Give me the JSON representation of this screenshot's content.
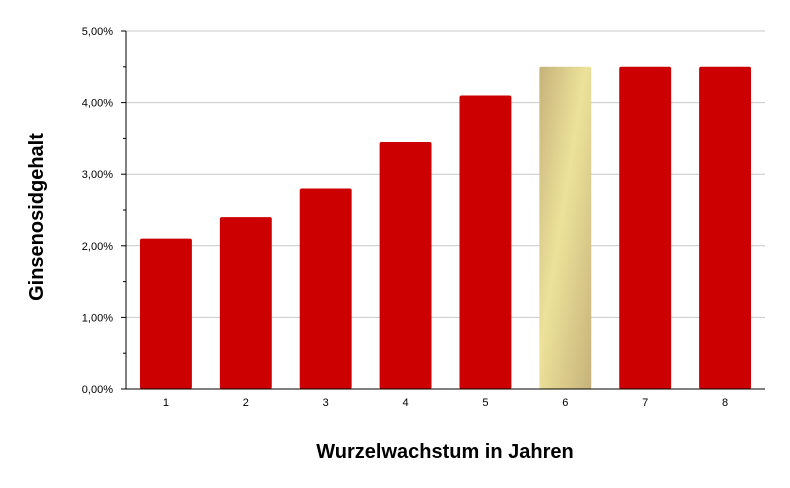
{
  "chart_data": {
    "type": "bar",
    "title": "",
    "xlabel": "Wurzelwachstum in Jahren",
    "ylabel": "Ginsenosidgehalt",
    "categories": [
      "1",
      "2",
      "3",
      "4",
      "5",
      "6",
      "7",
      "8"
    ],
    "values": [
      2.1,
      2.4,
      2.8,
      3.45,
      4.1,
      4.5,
      4.5,
      4.5
    ],
    "ylim": [
      0,
      5
    ],
    "y_ticks": [
      {
        "value": 0,
        "label": "0,00%"
      },
      {
        "value": 1,
        "label": "1,00%"
      },
      {
        "value": 2,
        "label": "2,00%"
      },
      {
        "value": 3,
        "label": "3,00%"
      },
      {
        "value": 4,
        "label": "4,00%"
      },
      {
        "value": 5,
        "label": "5,00%"
      }
    ],
    "grid": true,
    "legend": "none",
    "colors": {
      "bar": "#cc0000",
      "highlight_light": "#ece29a",
      "highlight_dark": "#c7b27a",
      "grid": "#c8c8c8",
      "axis": "#000000"
    },
    "highlight_category": "6"
  }
}
